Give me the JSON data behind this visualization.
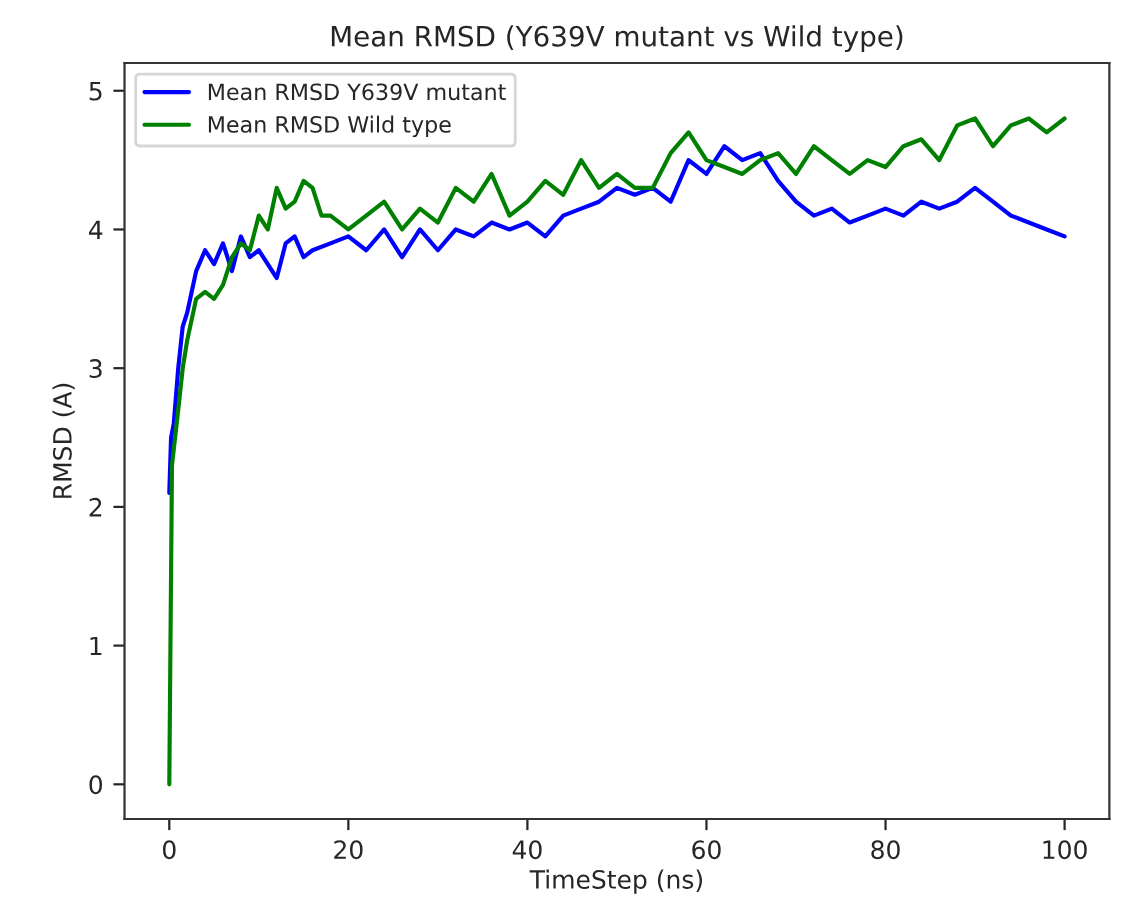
{
  "chart_data": {
    "type": "line",
    "title": "Mean RMSD (Y639V mutant vs Wild type)",
    "xlabel": "TimeStep (ns)",
    "ylabel": "RMSD (A)",
    "xlim": [
      -5,
      105
    ],
    "xticks": [
      0,
      20,
      40,
      60,
      80,
      100
    ],
    "ylim": [
      -0.25,
      5.2
    ],
    "yticks": [
      0,
      1,
      2,
      3,
      4,
      5
    ],
    "legend": "top left",
    "grid": false,
    "marker": "none",
    "line_style": "solid",
    "series": [
      {
        "name": "Mean RMSD Y639V mutant",
        "color": "#0000ff",
        "x": [
          0,
          0.2,
          0.5,
          1,
          1.5,
          2,
          3,
          4,
          5,
          6,
          7,
          8,
          9,
          10,
          11,
          12,
          13,
          14,
          15,
          16,
          18,
          20,
          22,
          24,
          26,
          28,
          30,
          32,
          34,
          36,
          38,
          40,
          42,
          44,
          46,
          48,
          50,
          52,
          54,
          56,
          58,
          60,
          62,
          64,
          66,
          68,
          70,
          72,
          74,
          76,
          78,
          80,
          82,
          84,
          86,
          88,
          90,
          92,
          94,
          96,
          98,
          100
        ],
        "values": [
          2.1,
          2.5,
          2.6,
          3.0,
          3.3,
          3.4,
          3.7,
          3.85,
          3.75,
          3.9,
          3.7,
          3.95,
          3.8,
          3.85,
          3.75,
          3.65,
          3.9,
          3.95,
          3.8,
          3.85,
          3.9,
          3.95,
          3.85,
          4.0,
          3.8,
          4.0,
          3.85,
          4.0,
          3.95,
          4.05,
          4.0,
          4.05,
          3.95,
          4.1,
          4.15,
          4.2,
          4.3,
          4.25,
          4.3,
          4.2,
          4.5,
          4.4,
          4.6,
          4.5,
          4.55,
          4.35,
          4.2,
          4.1,
          4.15,
          4.05,
          4.1,
          4.15,
          4.1,
          4.2,
          4.15,
          4.2,
          4.3,
          4.2,
          4.1,
          4.05,
          4.0,
          3.95
        ]
      },
      {
        "name": "Mean RMSD Wild type",
        "color": "#008000",
        "x": [
          0,
          0.3,
          1,
          1.5,
          2,
          3,
          4,
          5,
          6,
          7,
          8,
          9,
          10,
          11,
          12,
          13,
          14,
          15,
          16,
          17,
          18,
          20,
          22,
          24,
          26,
          28,
          30,
          32,
          34,
          36,
          38,
          40,
          42,
          44,
          46,
          48,
          50,
          52,
          54,
          56,
          58,
          60,
          62,
          64,
          66,
          68,
          70,
          72,
          74,
          76,
          78,
          80,
          82,
          84,
          86,
          88,
          90,
          92,
          94,
          96,
          98,
          100
        ],
        "values": [
          0,
          2.3,
          2.7,
          3.0,
          3.2,
          3.5,
          3.55,
          3.5,
          3.6,
          3.8,
          3.9,
          3.85,
          4.1,
          4.0,
          4.3,
          4.15,
          4.2,
          4.35,
          4.3,
          4.1,
          4.1,
          4.0,
          4.1,
          4.2,
          4.0,
          4.15,
          4.05,
          4.3,
          4.2,
          4.4,
          4.1,
          4.2,
          4.35,
          4.25,
          4.5,
          4.3,
          4.4,
          4.3,
          4.3,
          4.55,
          4.7,
          4.5,
          4.45,
          4.4,
          4.5,
          4.55,
          4.4,
          4.6,
          4.5,
          4.4,
          4.5,
          4.45,
          4.6,
          4.65,
          4.5,
          4.75,
          4.8,
          4.6,
          4.75,
          4.8,
          4.7,
          4.8
        ]
      }
    ]
  }
}
